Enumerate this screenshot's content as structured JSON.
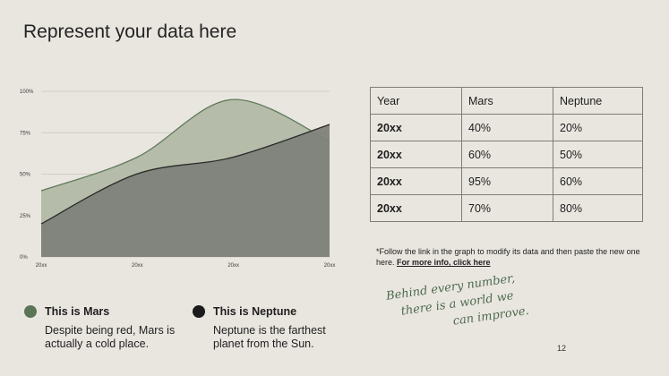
{
  "page": {
    "title": "Represent your data here",
    "page_number": "12"
  },
  "chart_data": {
    "type": "area",
    "x": [
      "20xx",
      "20xx",
      "20xx",
      "20xx"
    ],
    "y_ticks": [
      "0%",
      "25%",
      "50%",
      "75%",
      "100%"
    ],
    "ylim": [
      0,
      100
    ],
    "grid": true,
    "series": [
      {
        "name": "Mars",
        "color": "#b2b9a6",
        "line_color": "#5f7a5b",
        "points": [
          [
            0,
            40
          ],
          [
            0.33,
            60
          ],
          [
            0.66,
            95
          ],
          [
            1,
            70
          ]
        ]
      },
      {
        "name": "Neptune",
        "color": "#80827a",
        "line_color": "#2a2a28",
        "points": [
          [
            0,
            20
          ],
          [
            0.33,
            50
          ],
          [
            0.66,
            60
          ],
          [
            1,
            80
          ]
        ]
      }
    ]
  },
  "table": {
    "headers": [
      "Year",
      "Mars",
      "Neptune"
    ],
    "rows": [
      [
        "20xx",
        "40%",
        "20%"
      ],
      [
        "20xx",
        "60%",
        "50%"
      ],
      [
        "20xx",
        "95%",
        "60%"
      ],
      [
        "20xx",
        "70%",
        "80%"
      ]
    ]
  },
  "note": {
    "text": "*Follow the link in the graph to modify its data and then paste the new one here. ",
    "link": "For more info, click here"
  },
  "legend": [
    {
      "name": "This is Mars",
      "desc": "Despite being red, Mars is actually a cold place.",
      "color": "#5b7656"
    },
    {
      "name": "This is Neptune",
      "desc": "Neptune is the farthest planet from the Sun.",
      "color": "#1b1b1b"
    }
  ],
  "quote": {
    "line1": "Behind every number,",
    "line2": "there is a world we",
    "line3": "can improve."
  }
}
